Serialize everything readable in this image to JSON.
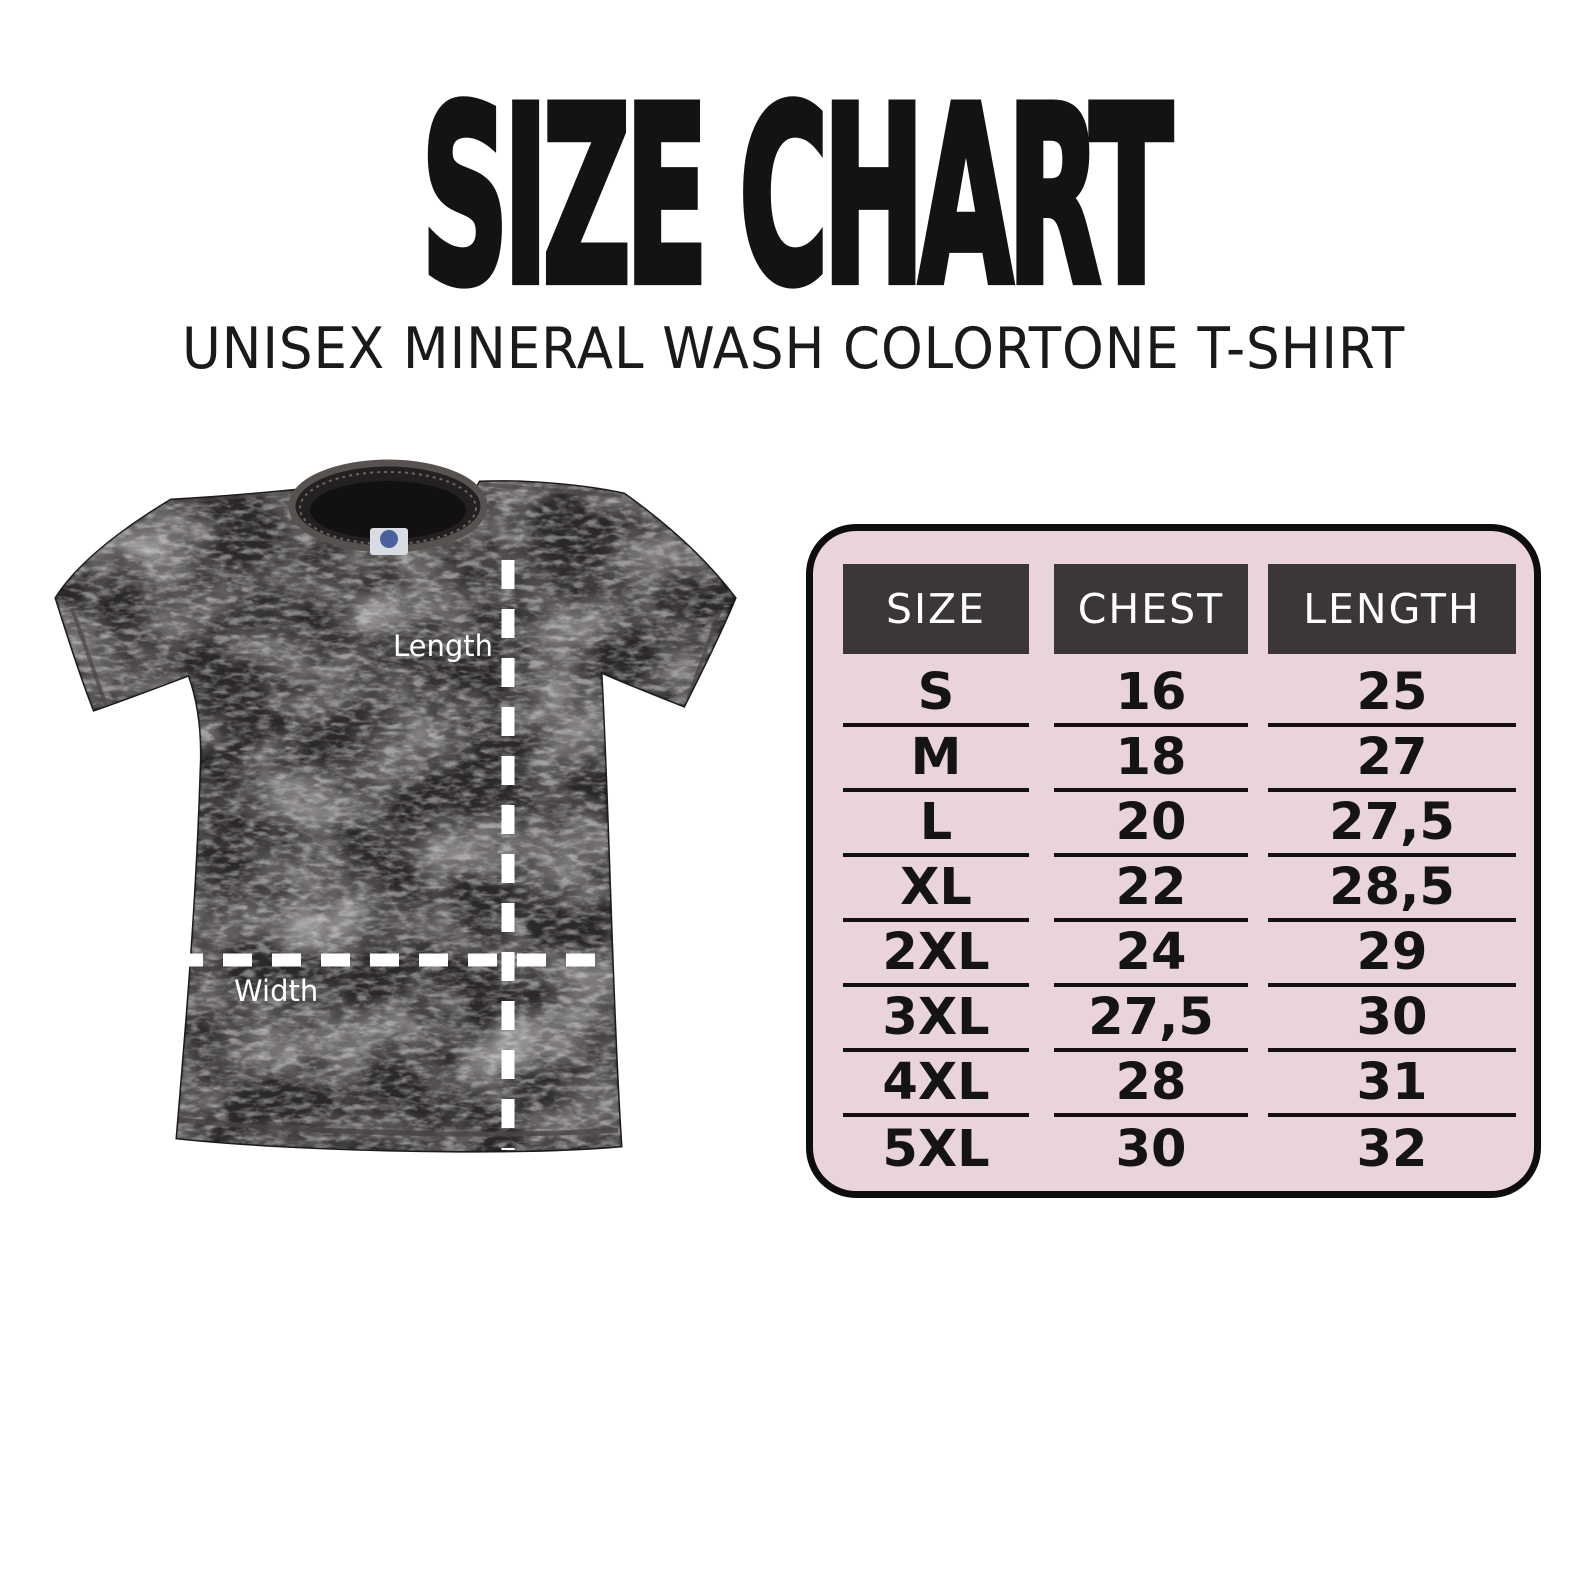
{
  "page": {
    "title": "SIZE CHART",
    "subtitle": "UNISEX MINERAL WASH COLORTONE T-SHIRT"
  },
  "diagram": {
    "length_label": "Length",
    "width_label": "Width"
  },
  "chart_data": {
    "type": "table",
    "title": "SIZE CHART",
    "subtitle": "UNISEX MINERAL WASH COLORTONE T-SHIRT",
    "columns": [
      "SIZE",
      "CHEST",
      "LENGTH"
    ],
    "rows": [
      [
        "S",
        "16",
        "25"
      ],
      [
        "M",
        "18",
        "27"
      ],
      [
        "L",
        "20",
        "27,5"
      ],
      [
        "XL",
        "22",
        "28,5"
      ],
      [
        "2XL",
        "24",
        "29"
      ],
      [
        "3XL",
        "27,5",
        "30"
      ],
      [
        "4XL",
        "28",
        "31"
      ],
      [
        "5XL",
        "30",
        "32"
      ]
    ]
  },
  "colors": {
    "background": "#ffffff",
    "text": "#141213",
    "table_background": "#e8d4da",
    "table_border": "#0e0d0d",
    "header_background": "#3b3738",
    "header_text": "#ffffff",
    "row_line": "#131111",
    "measure_line": "#ffffff",
    "shirt_base": "#2b2829"
  }
}
